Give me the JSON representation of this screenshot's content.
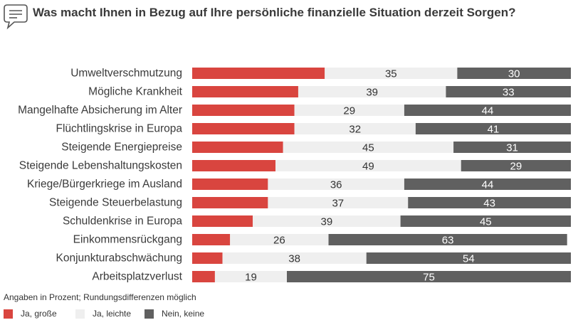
{
  "title": "Was macht Ihnen in Bezug auf Ihre persönliche finanzielle Situation derzeit Sorgen?",
  "footnote": "Angaben in Prozent; Rundungsdifferenzen möglich",
  "colors": {
    "gross": "#d9453f",
    "leicht": "#efefef",
    "keine": "#606060"
  },
  "chart_data": {
    "type": "bar",
    "orientation": "horizontal",
    "stacked": true,
    "title": "Was macht Ihnen in Bezug auf Ihre persönliche finanzielle Situation derzeit Sorgen?",
    "unit": "Prozent",
    "xlim": [
      0,
      100
    ],
    "categories": [
      "Umweltverschmutzung",
      "Mögliche Krankheit",
      "Mangelhafte Absicherung im Alter",
      "Flüchtlingskrise in Europa",
      "Steigende Energiepreise",
      "Steigende Lebenshaltungskosten",
      "Kriege/Bürgerkriege im Ausland",
      "Steigende Steuerbelastung",
      "Schuldenkrise in Europa",
      "Einkommensrückgang",
      "Konjunkturabschwächung",
      "Arbeitsplatzverlust"
    ],
    "series": [
      {
        "name": "Ja, große",
        "values": [
          35,
          28,
          27,
          27,
          24,
          22,
          20,
          20,
          16,
          10,
          8,
          6
        ],
        "labeled": false
      },
      {
        "name": "Ja, leichte",
        "values": [
          35,
          39,
          29,
          32,
          45,
          49,
          36,
          37,
          39,
          26,
          38,
          19
        ],
        "labeled": true
      },
      {
        "name": "Nein, keine",
        "values": [
          30,
          33,
          44,
          41,
          31,
          29,
          44,
          43,
          45,
          63,
          54,
          75
        ],
        "labeled": true
      }
    ]
  }
}
